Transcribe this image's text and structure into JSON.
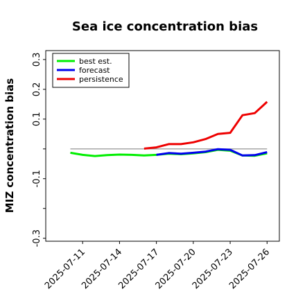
{
  "chart_data": {
    "type": "line",
    "title": "Sea ice concentration bias",
    "xlabel": "",
    "ylabel": "MIZ concentration bias",
    "ylim": [
      -0.31,
      0.33
    ],
    "xlim": [
      "2025-07-08",
      "2025-07-27"
    ],
    "yticks": [
      -0.3,
      -0.2,
      -0.1,
      0.0,
      0.1,
      0.2,
      0.3
    ],
    "ytick_labels": [
      "-0.3",
      "",
      "-0.1",
      "",
      "0.1",
      "0.2",
      "0.3"
    ],
    "xticks": [
      "2025-07-11",
      "2025-07-14",
      "2025-07-17",
      "2025-07-20",
      "2025-07-23",
      "2025-07-26"
    ],
    "highlighted_xtick": "2025-07-17",
    "highlight_color": "#228B22",
    "reference_line": 0.0,
    "reference_color": "#888888",
    "grid": false,
    "legend_position": "top-left",
    "series": [
      {
        "name": "best est.",
        "color": "#00ee00",
        "x": [
          "2025-07-10",
          "2025-07-11",
          "2025-07-12",
          "2025-07-13",
          "2025-07-14",
          "2025-07-15",
          "2025-07-16",
          "2025-07-17",
          "2025-07-18",
          "2025-07-19",
          "2025-07-20",
          "2025-07-21",
          "2025-07-22",
          "2025-07-23",
          "2025-07-24",
          "2025-07-25",
          "2025-07-26"
        ],
        "values": [
          -0.013,
          -0.02,
          -0.024,
          -0.021,
          -0.019,
          -0.02,
          -0.022,
          -0.02,
          -0.016,
          -0.018,
          -0.015,
          -0.011,
          -0.003,
          -0.006,
          -0.022,
          -0.023,
          -0.015
        ]
      },
      {
        "name": "forecast",
        "color": "#0000ee",
        "x": [
          "2025-07-17",
          "2025-07-18",
          "2025-07-19",
          "2025-07-20",
          "2025-07-21",
          "2025-07-22",
          "2025-07-23",
          "2025-07-24",
          "2025-07-25",
          "2025-07-26"
        ],
        "values": [
          -0.02,
          -0.014,
          -0.016,
          -0.013,
          -0.009,
          -0.001,
          -0.003,
          -0.022,
          -0.021,
          -0.011
        ]
      },
      {
        "name": "persistence",
        "color": "#ee0000",
        "x": [
          "2025-07-16",
          "2025-07-17",
          "2025-07-18",
          "2025-07-19",
          "2025-07-20",
          "2025-07-21",
          "2025-07-22",
          "2025-07-23",
          "2025-07-24",
          "2025-07-25",
          "2025-07-26"
        ],
        "values": [
          0.001,
          0.005,
          0.016,
          0.016,
          0.022,
          0.033,
          0.05,
          0.054,
          0.113,
          0.12,
          0.158
        ]
      }
    ]
  }
}
